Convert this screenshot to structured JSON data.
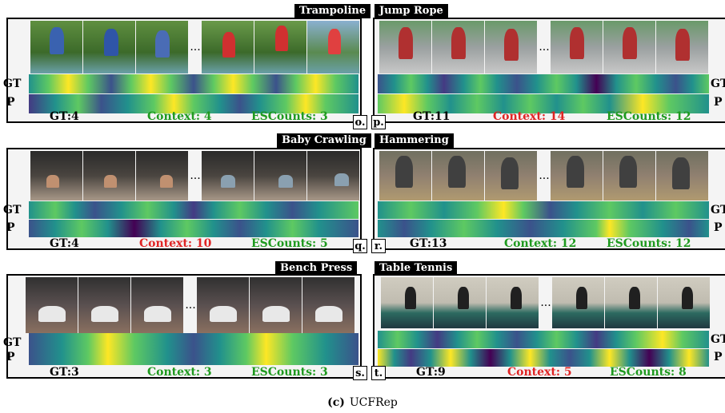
{
  "panels": [
    {
      "title": "Trampoline",
      "gt": "GT:4",
      "context": "Context: 4",
      "escounts": "ESCounts: 3",
      "ctx_color": "green",
      "esc_color": "green",
      "side_left": true,
      "letter": "o."
    },
    {
      "title": "Jump Rope",
      "gt": "GT:11",
      "context": "Context: 14",
      "escounts": "ESCounts: 12",
      "ctx_color": "red",
      "esc_color": "green",
      "side_left": false,
      "letter": "p."
    },
    {
      "title": "Baby Crawling",
      "gt": "GT:4",
      "context": "Context: 10",
      "escounts": "ESCounts: 5",
      "ctx_color": "red",
      "esc_color": "green",
      "side_left": true,
      "letter": "q."
    },
    {
      "title": "Hammering",
      "gt": "GT:13",
      "context": "Context: 12",
      "escounts": "ESCounts: 12",
      "ctx_color": "green",
      "esc_color": "green",
      "side_left": false,
      "letter": "r."
    },
    {
      "title": "Bench Press",
      "gt": "GT:3",
      "context": "Context: 3",
      "escounts": "ESCounts: 3",
      "ctx_color": "green",
      "esc_color": "green",
      "side_left": true,
      "letter": "s."
    },
    {
      "title": "Table Tennis",
      "gt": "GT:9",
      "context": "Context: 5",
      "escounts": "ESCounts: 8",
      "ctx_color": "red",
      "esc_color": "green",
      "side_left": false,
      "letter": "t."
    }
  ],
  "side_labels": {
    "gt": "GT",
    "p": "P"
  },
  "ellipsis": "...",
  "caption": {
    "label": "(c)",
    "text": "UCFRep"
  },
  "colors": {
    "green": "#1f9a1f",
    "red": "#e02424",
    "viridis_low": "#440154",
    "viridis_mid": "#21918c",
    "viridis_high": "#fde725"
  }
}
